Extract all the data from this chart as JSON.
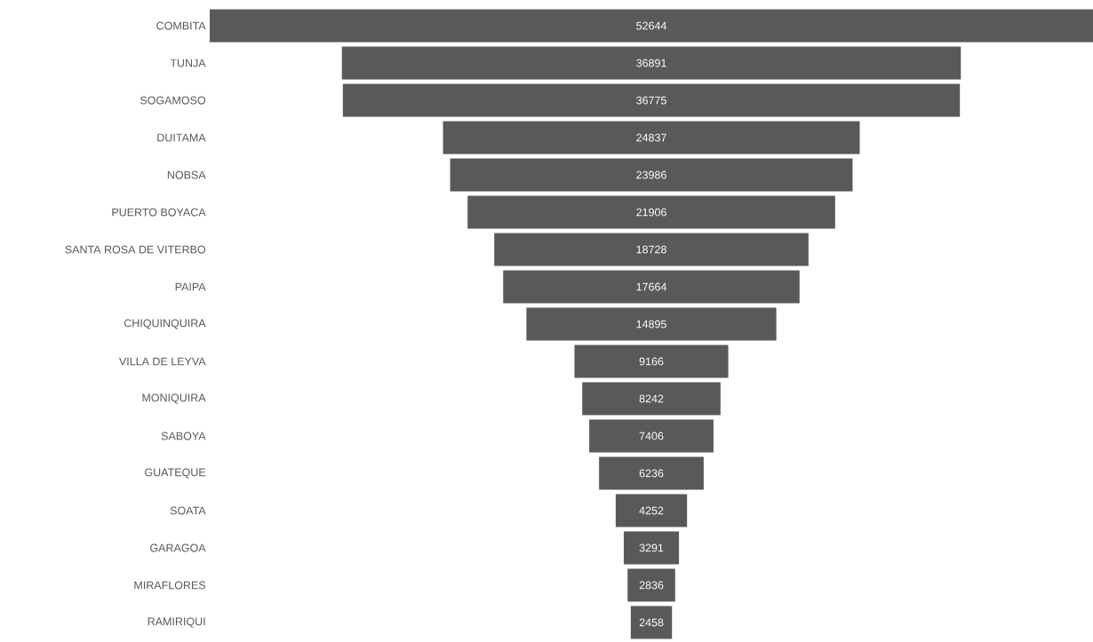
{
  "chart_data": {
    "type": "other",
    "categories": [
      "COMBITA",
      "TUNJA",
      "SOGAMOSO",
      "DUITAMA",
      "NOBSA",
      "PUERTO BOYACA",
      "SANTA ROSA DE VITERBO",
      "PAIPA",
      "CHIQUINQUIRA",
      "VILLA DE LEYVA",
      "MONIQUIRA",
      "SABOYA",
      "GUATEQUE",
      "SOATA",
      "GARAGOA",
      "MIRAFLORES",
      "RAMIRIQUI"
    ],
    "values": [
      52644,
      36891,
      36775,
      24837,
      23986,
      21906,
      18728,
      17664,
      14895,
      9166,
      8242,
      7406,
      6236,
      4252,
      3291,
      2836,
      2458
    ],
    "color": "#595959",
    "data_labels": true
  }
}
